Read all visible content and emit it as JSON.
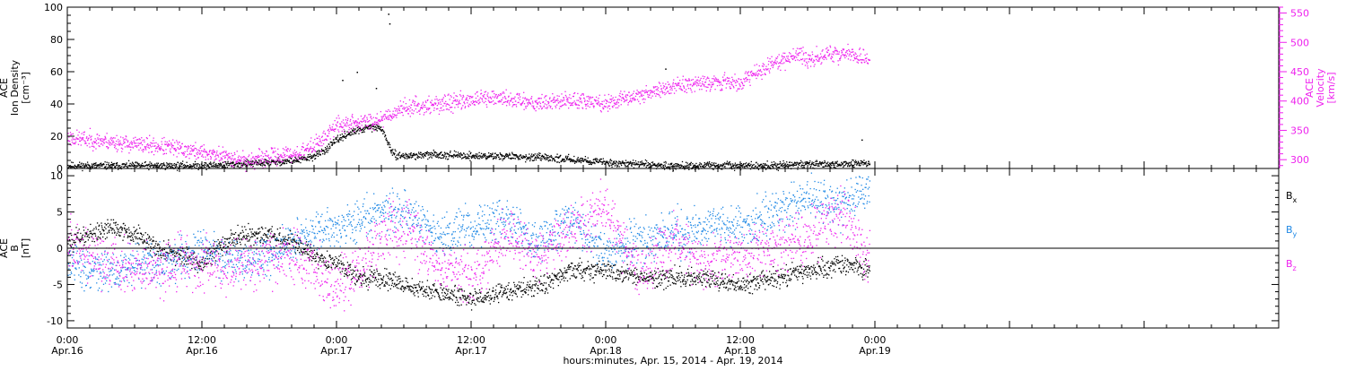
{
  "colors": {
    "black": "#000000",
    "magenta": "#ee22ee",
    "blue": "#1e88e5"
  },
  "xaxis": {
    "title": "hours:minutes, Apr. 15, 2014 - Apr. 19, 2014",
    "range_hours": [
      0,
      108
    ],
    "ticks": [
      {
        "hours": 0,
        "time": "0:00",
        "date": "Apr.16"
      },
      {
        "hours": 12,
        "time": "12:00",
        "date": "Apr.16"
      },
      {
        "hours": 24,
        "time": "0:00",
        "date": "Apr.17"
      },
      {
        "hours": 36,
        "time": "12:00",
        "date": "Apr.17"
      },
      {
        "hours": 48,
        "time": "0:00",
        "date": "Apr.18"
      },
      {
        "hours": 60,
        "time": "12:00",
        "date": "Apr.18"
      },
      {
        "hours": 72,
        "time": "0:00",
        "date": "Apr.19"
      }
    ]
  },
  "chart_data": [
    {
      "type": "scatter",
      "panel": "plasma",
      "ylabel_lines": [
        "ACE",
        "Ion Density",
        "[cm⁻³]"
      ],
      "y2label_lines": [
        "ACE",
        "Velocity",
        "[km/s]"
      ],
      "ylim": [
        0,
        100
      ],
      "y2lim": [
        285,
        560
      ],
      "yticks": [
        0,
        20,
        40,
        60,
        80,
        100
      ],
      "y2ticks": [
        300,
        350,
        400,
        450,
        500,
        550
      ],
      "series": [
        {
          "color": "black",
          "axis": "left",
          "x": [
            0,
            3,
            6,
            9,
            12,
            15,
            18,
            20,
            21,
            22,
            23,
            24,
            25,
            26,
            27,
            28,
            29,
            30,
            33,
            36,
            39,
            42,
            45,
            48,
            51,
            54,
            57,
            60,
            63,
            66,
            69,
            71.5
          ],
          "y": [
            2,
            2,
            2,
            2,
            2,
            3,
            4,
            5,
            6,
            8,
            12,
            18,
            22,
            24,
            26,
            25,
            9,
            8,
            9,
            8,
            8,
            7,
            6,
            4,
            3,
            2,
            2,
            2,
            2,
            3,
            3,
            4
          ],
          "spikes": [
            {
              "x": 28.6,
              "y": 96
            },
            {
              "x": 28.7,
              "y": 90
            },
            {
              "x": 25.8,
              "y": 60
            },
            {
              "x": 24.5,
              "y": 55
            },
            {
              "x": 27.5,
              "y": 50
            },
            {
              "x": 53.3,
              "y": 62
            },
            {
              "x": 70.8,
              "y": 18
            }
          ]
        },
        {
          "color": "magenta",
          "axis": "right",
          "x": [
            0,
            3,
            6,
            9,
            12,
            15,
            16,
            18,
            21,
            23,
            24,
            27,
            28,
            29,
            30,
            33,
            36,
            39,
            42,
            45,
            48,
            51,
            54,
            57,
            60,
            61,
            63,
            65,
            66,
            68,
            70,
            71.5
          ],
          "y": [
            338,
            333,
            327,
            322,
            313,
            304,
            298,
            305,
            313,
            340,
            360,
            366,
            372,
            380,
            390,
            395,
            403,
            405,
            398,
            402,
            396,
            412,
            425,
            435,
            432,
            445,
            465,
            482,
            472,
            480,
            480,
            470
          ],
          "noise": 14
        }
      ]
    },
    {
      "type": "scatter",
      "panel": "magnetic",
      "ylabel_lines": [
        "ACE",
        "B",
        "[nT]"
      ],
      "ylim": [
        -11,
        11
      ],
      "yticks": [
        -10,
        -5,
        0,
        5,
        10
      ],
      "zero_line": true,
      "series": [
        {
          "name": "Bx",
          "color": "black",
          "x": [
            0,
            2,
            4,
            6,
            8,
            10,
            12,
            14,
            16,
            18,
            20,
            22,
            24,
            26,
            28,
            30,
            33,
            36,
            39,
            42,
            45,
            48,
            51,
            54,
            57,
            60,
            63,
            66,
            69,
            71.5
          ],
          "y": [
            1,
            2,
            3,
            2,
            0,
            -1,
            -2,
            1,
            2,
            2,
            1,
            -1,
            -2,
            -4,
            -4,
            -5,
            -6,
            -7,
            -6,
            -5,
            -3,
            -3,
            -4,
            -4,
            -4,
            -5,
            -4,
            -3,
            -2,
            -3
          ],
          "noise": 1.3
        },
        {
          "name": "By",
          "color": "blue",
          "x": [
            0,
            2,
            4,
            6,
            8,
            10,
            12,
            14,
            16,
            18,
            20,
            22,
            24,
            26,
            28,
            30,
            33,
            36,
            39,
            42,
            45,
            48,
            51,
            54,
            57,
            60,
            63,
            66,
            69,
            71.5
          ],
          "y": [
            -2,
            -3,
            -3,
            -2,
            -2,
            -1,
            0,
            -1,
            -2,
            -1,
            1,
            2,
            3,
            4,
            5,
            5,
            2,
            3,
            4,
            1,
            4,
            -1,
            1,
            2,
            3,
            3,
            5,
            7,
            6,
            8
          ],
          "noise": 2.8
        },
        {
          "name": "Bz",
          "color": "magenta",
          "x": [
            0,
            2,
            4,
            6,
            8,
            10,
            12,
            14,
            16,
            18,
            20,
            22,
            24,
            26,
            28,
            30,
            33,
            36,
            39,
            42,
            45,
            48,
            51,
            54,
            57,
            60,
            63,
            66,
            69,
            71.5
          ],
          "y": [
            1,
            -1,
            -2,
            -3,
            -3,
            -2,
            -2,
            -2,
            -2,
            -1,
            -1,
            -3,
            -5,
            -3,
            2,
            3,
            -2,
            -4,
            2,
            -1,
            3,
            5,
            -3,
            1,
            -2,
            -1,
            0,
            2,
            5,
            -1
          ],
          "noise": 3.5
        }
      ],
      "legend": [
        {
          "label": "B",
          "sub": "x",
          "color": "black"
        },
        {
          "label": "B",
          "sub": "y",
          "color": "blue"
        },
        {
          "label": "B",
          "sub": "z",
          "color": "magenta"
        }
      ]
    }
  ]
}
